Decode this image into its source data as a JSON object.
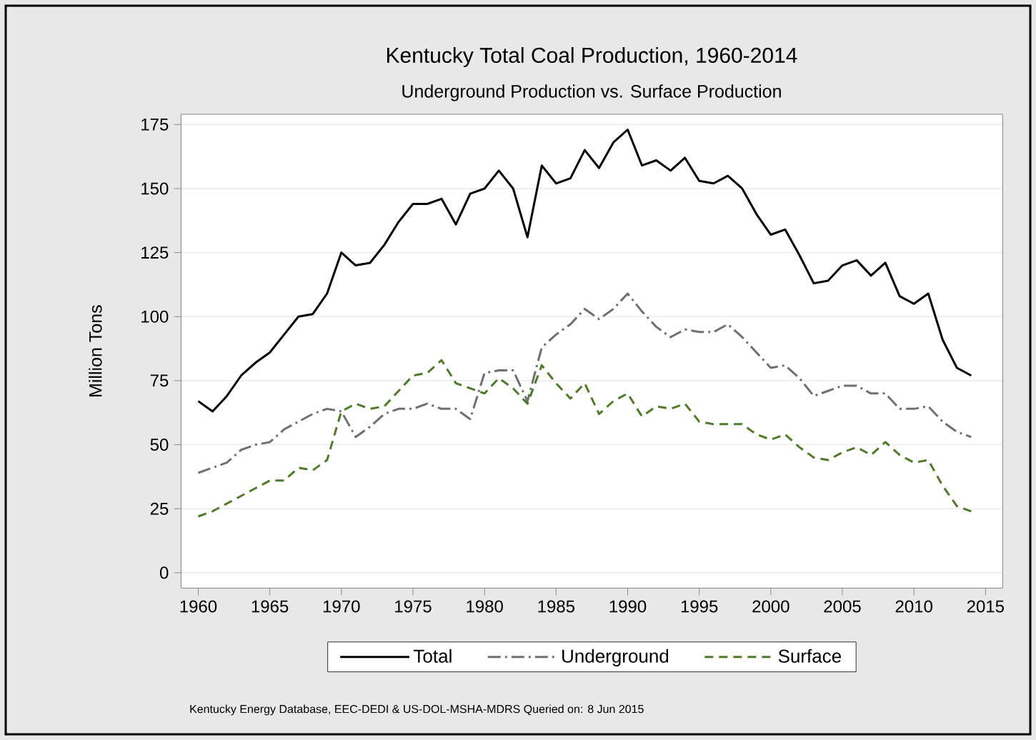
{
  "chart_data": {
    "type": "line",
    "title": "Kentucky Total Coal Production, 1960-2014",
    "subtitle": "Underground Production vs. Surface Production",
    "ylabel": "Million Tons",
    "annotations": [
      "Kentucky Energy Database, EEC-DEDI & US-DOL-MSHA-MDRS Queried on: 8 Jun 2015"
    ],
    "x": [
      1960,
      1961,
      1962,
      1963,
      1964,
      1965,
      1966,
      1967,
      1968,
      1969,
      1970,
      1971,
      1972,
      1973,
      1974,
      1975,
      1976,
      1977,
      1978,
      1979,
      1980,
      1981,
      1982,
      1983,
      1984,
      1985,
      1986,
      1987,
      1988,
      1989,
      1990,
      1991,
      1992,
      1993,
      1994,
      1995,
      1996,
      1997,
      1998,
      1999,
      2000,
      2001,
      2002,
      2003,
      2004,
      2005,
      2006,
      2007,
      2008,
      2009,
      2010,
      2011,
      2012,
      2013,
      2014
    ],
    "series": [
      {
        "name": "Total",
        "color": "#000000",
        "line_style": "solid",
        "values": [
          67,
          63,
          69,
          77,
          82,
          86,
          93,
          100,
          101,
          109,
          125,
          120,
          121,
          128,
          137,
          144,
          144,
          146,
          136,
          148,
          150,
          157,
          150,
          131,
          159,
          152,
          154,
          165,
          158,
          168,
          173,
          159,
          161,
          157,
          162,
          153,
          152,
          155,
          150,
          140,
          132,
          134,
          124,
          113,
          114,
          120,
          122,
          116,
          121,
          108,
          105,
          109,
          91,
          80,
          77
        ]
      },
      {
        "name": "Underground",
        "color": "#707070",
        "line_style": "dashdot",
        "values": [
          39,
          41,
          43,
          48,
          50,
          51,
          56,
          59,
          62,
          64,
          63,
          53,
          57,
          62,
          64,
          64,
          66,
          64,
          64,
          60,
          78,
          79,
          79,
          67,
          88,
          93,
          97,
          103,
          99,
          103,
          109,
          102,
          96,
          92,
          95,
          94,
          94,
          97,
          92,
          86,
          80,
          81,
          76,
          69,
          71,
          73,
          73,
          70,
          70,
          64,
          64,
          65,
          59,
          55,
          53
        ]
      },
      {
        "name": "Surface",
        "color": "#4f7a28",
        "line_style": "dashed",
        "values": [
          22,
          24,
          27,
          30,
          33,
          36,
          36,
          41,
          40,
          44,
          63,
          66,
          64,
          65,
          71,
          77,
          78,
          83,
          74,
          72,
          70,
          76,
          72,
          66,
          81,
          74,
          68,
          74,
          62,
          67,
          70,
          61,
          65,
          64,
          66,
          59,
          58,
          58,
          58,
          54,
          52,
          54,
          49,
          45,
          44,
          47,
          49,
          46,
          51,
          46,
          43,
          44,
          34,
          26,
          24
        ]
      }
    ],
    "xlim": [
      1958.8,
      2016.2
    ],
    "ylim": [
      -6,
      179
    ],
    "xticks": [
      1960,
      1965,
      1970,
      1975,
      1980,
      1985,
      1990,
      1995,
      2000,
      2005,
      2010,
      2015
    ],
    "yticks": [
      0,
      25,
      50,
      75,
      100,
      125,
      150,
      175
    ],
    "grid": "y",
    "legend": "bottom",
    "marker": "none"
  }
}
